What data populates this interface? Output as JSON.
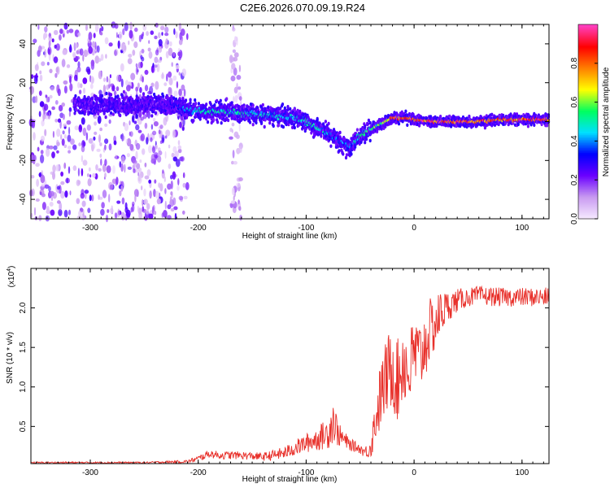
{
  "chart_data": [
    {
      "type": "heatmap",
      "title": "C2E6.2026.070.09.19.R24",
      "xlabel": "Height of straight line (km)",
      "ylabel": "Frequency (Hz)",
      "xlim": [
        -355,
        125
      ],
      "ylim": [
        -50,
        50
      ],
      "xticks": [
        -300,
        -200,
        -100,
        0,
        100
      ],
      "xtick_labels": [
        "-300",
        "-200",
        "-100",
        "0",
        "100"
      ],
      "yticks": [
        -40,
        -20,
        0,
        20,
        40
      ],
      "ytick_labels": [
        "-40",
        "-20",
        "0",
        "20",
        "40"
      ],
      "colorbar": {
        "label": "Normalized spectral amplitude",
        "range": [
          0,
          1
        ],
        "ticks": [
          0.0,
          0.2,
          0.4,
          0.6,
          0.8
        ],
        "tick_labels": [
          "0.0",
          "0.2",
          "0.4",
          "0.6",
          "0.8"
        ],
        "colors": [
          "#f5e8ff",
          "#c89af0",
          "#6a00ff",
          "#0000ff",
          "#00e0ff",
          "#00ff60",
          "#ffff00",
          "#ff8000",
          "#ff0000",
          "#ff40c0"
        ]
      },
      "noise_regions": [
        {
          "x_start": -355,
          "x_end": -210,
          "level": 0.2
        },
        {
          "x_start": -170,
          "x_end": -160,
          "level": 0.12
        }
      ],
      "ridge": {
        "x": [
          -315,
          -300,
          -280,
          -260,
          -240,
          -220,
          -210,
          -190,
          -170,
          -150,
          -130,
          -110,
          -100,
          -90,
          -80,
          -70,
          -60,
          -55,
          -50,
          -40,
          -30,
          -20,
          -10,
          0,
          20,
          40,
          60,
          80,
          100,
          125
        ],
        "frequency": [
          9,
          8,
          9,
          8,
          9,
          8,
          6,
          5,
          5,
          4,
          3,
          2,
          0,
          -3,
          -6,
          -10,
          -14,
          -10,
          -7,
          -4,
          -1,
          2,
          2,
          1,
          0,
          0,
          0,
          1,
          1,
          1
        ],
        "amplitude": [
          0.22,
          0.24,
          0.26,
          0.25,
          0.22,
          0.3,
          0.45,
          0.5,
          0.48,
          0.5,
          0.45,
          0.45,
          0.5,
          0.5,
          0.42,
          0.38,
          0.4,
          0.45,
          0.5,
          0.55,
          0.6,
          0.9,
          0.85,
          0.9,
          0.9,
          0.9,
          0.9,
          0.85,
          0.9,
          0.9
        ]
      }
    },
    {
      "type": "line",
      "xlabel": "Height of straight line (km)",
      "ylabel": "SNR (10 * v/v)",
      "y_multiplier": "(x10",
      "y_multiplier_exp": "4",
      "y_multiplier_close": ")",
      "xlim": [
        -355,
        125
      ],
      "ylim": [
        0.03,
        2.5
      ],
      "xticks": [
        -300,
        -200,
        -100,
        0,
        100
      ],
      "xtick_labels": [
        "-300",
        "-200",
        "-100",
        "0",
        "100"
      ],
      "yticks": [
        0.5,
        1.0,
        1.5,
        2.0
      ],
      "ytick_labels": [
        "0.5",
        "1.0",
        "1.5",
        "2.0"
      ],
      "series": [
        {
          "name": "SNR",
          "color": "#e8302a",
          "x": [
            -355,
            -300,
            -250,
            -210,
            -200,
            -190,
            -180,
            -160,
            -140,
            -120,
            -110,
            -100,
            -90,
            -80,
            -75,
            -70,
            -60,
            -50,
            -45,
            -40,
            -35,
            -30,
            -25,
            -20,
            -15,
            -10,
            -5,
            0,
            5,
            10,
            15,
            20,
            25,
            30,
            40,
            50,
            60,
            80,
            100,
            125
          ],
          "y": [
            0.04,
            0.04,
            0.04,
            0.05,
            0.08,
            0.14,
            0.12,
            0.12,
            0.1,
            0.14,
            0.2,
            0.25,
            0.3,
            0.35,
            0.5,
            0.35,
            0.25,
            0.2,
            0.15,
            0.2,
            0.55,
            0.8,
            1.0,
            1.1,
            0.9,
            1.2,
            1.0,
            1.3,
            1.2,
            1.4,
            1.6,
            1.7,
            1.85,
            1.95,
            2.05,
            2.1,
            2.12,
            2.1,
            2.1,
            2.1
          ],
          "noise": [
            0.01,
            0.01,
            0.01,
            0.02,
            0.04,
            0.05,
            0.05,
            0.05,
            0.05,
            0.08,
            0.1,
            0.12,
            0.15,
            0.2,
            0.3,
            0.15,
            0.08,
            0.06,
            0.08,
            0.15,
            0.35,
            0.45,
            0.5,
            0.55,
            0.55,
            0.55,
            0.5,
            0.5,
            0.5,
            0.45,
            0.4,
            0.35,
            0.3,
            0.2,
            0.15,
            0.12,
            0.12,
            0.12,
            0.12,
            0.12
          ]
        }
      ]
    }
  ]
}
